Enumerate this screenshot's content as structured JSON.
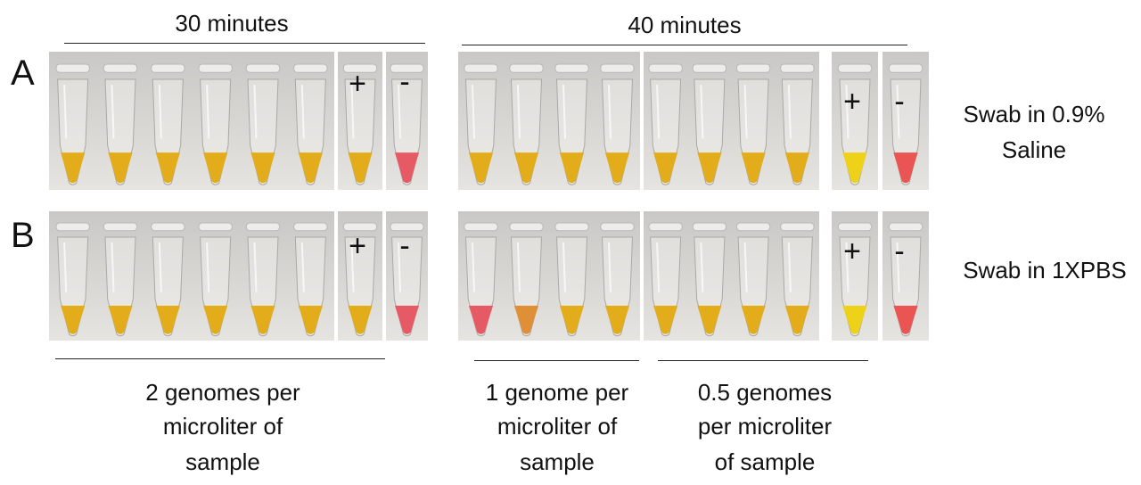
{
  "header": {
    "time_a": "30 minutes",
    "time_b": "40 minutes"
  },
  "rows": [
    {
      "label": "A",
      "condition_line1": "Swab in 0.9%",
      "condition_line2": "Saline"
    },
    {
      "label": "B",
      "condition_line1": "Swab in 1XPBS",
      "condition_line2": ""
    }
  ],
  "controls": {
    "positive": "+",
    "negative": "-"
  },
  "groups": [
    {
      "line1": "2 genomes per",
      "line2": "microliter of",
      "line3": "sample"
    },
    {
      "line1": "1 genome per",
      "line2": "microliter of",
      "line3": "sample"
    },
    {
      "line1": "0.5 genomes",
      "line2": "per microliter",
      "line3": "of sample"
    }
  ],
  "colors": {
    "background": "#d9d7d3",
    "tube_yellow": "#e3ac1a",
    "tube_orange": "#df8f36",
    "tube_pink": "#e65a66",
    "tube_bright_yellow": "#eed21a",
    "tube_red": "#ea5553"
  },
  "photos": {
    "A_30": [
      "tube_yellow",
      "tube_yellow",
      "tube_yellow",
      "tube_yellow",
      "tube_yellow",
      "tube_yellow"
    ],
    "A_30_pos": [
      "tube_yellow"
    ],
    "A_30_neg": [
      "tube_pink"
    ],
    "A_40_left": [
      "tube_yellow",
      "tube_yellow",
      "tube_yellow",
      "tube_yellow"
    ],
    "A_40_right": [
      "tube_yellow",
      "tube_yellow",
      "tube_yellow",
      "tube_yellow"
    ],
    "A_40_pos": [
      "tube_bright_yellow"
    ],
    "A_40_neg": [
      "tube_red"
    ],
    "B_30": [
      "tube_yellow",
      "tube_yellow",
      "tube_yellow",
      "tube_yellow",
      "tube_yellow",
      "tube_yellow"
    ],
    "B_30_pos": [
      "tube_yellow"
    ],
    "B_30_neg": [
      "tube_pink"
    ],
    "B_40_left": [
      "tube_pink",
      "tube_orange",
      "tube_yellow",
      "tube_yellow"
    ],
    "B_40_right": [
      "tube_yellow",
      "tube_yellow",
      "tube_yellow",
      "tube_yellow"
    ],
    "B_40_pos": [
      "tube_bright_yellow"
    ],
    "B_40_neg": [
      "tube_red"
    ]
  }
}
